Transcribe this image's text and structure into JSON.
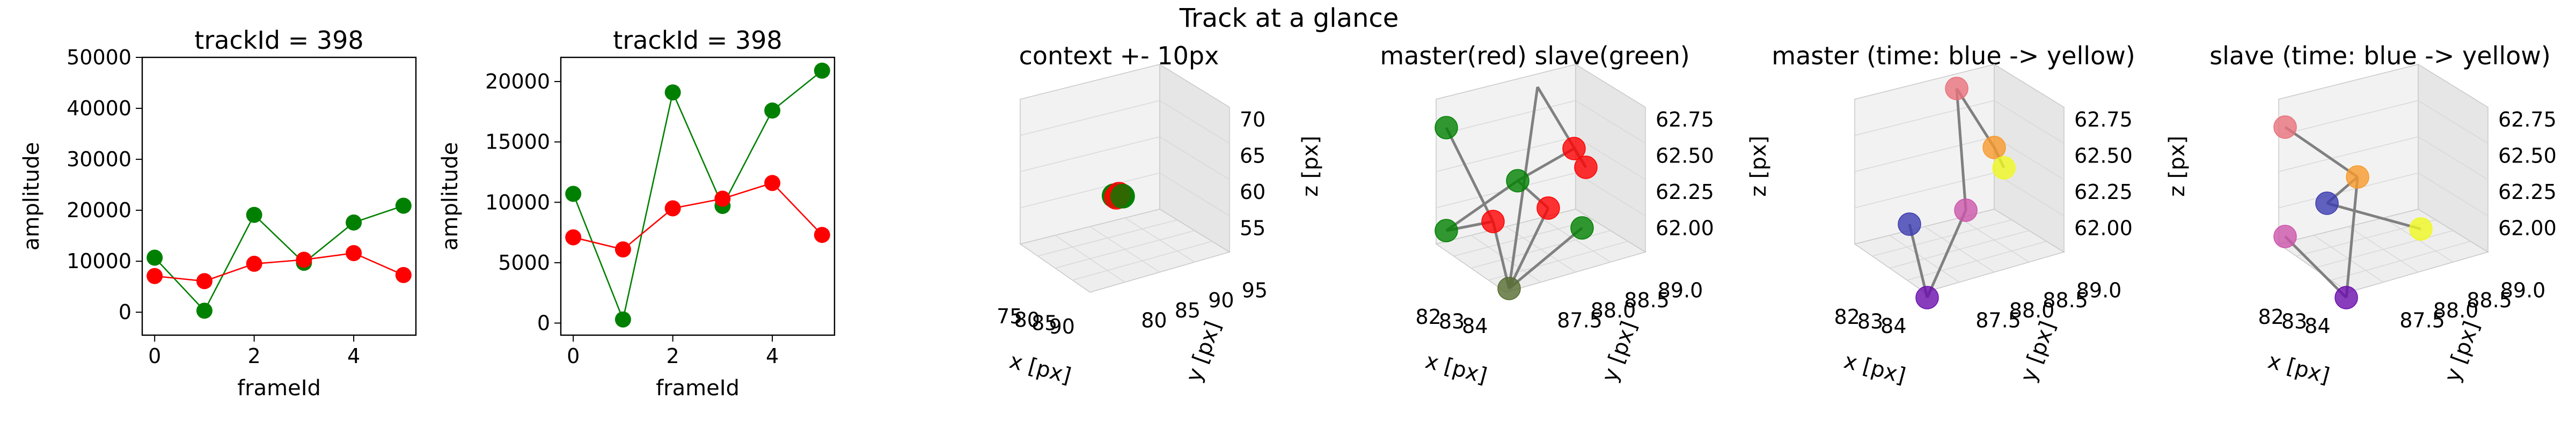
{
  "figure": {
    "suptitle": "Track at a glance"
  },
  "chart_data": [
    {
      "type": "line",
      "title": "trackId = 398",
      "xlabel": "frameId",
      "ylabel": "amplitude",
      "x": [
        0,
        1,
        2,
        3,
        4,
        5
      ],
      "xlim": [
        -0.25,
        5.25
      ],
      "ylim": [
        -4500,
        50000
      ],
      "xticks": [
        "0",
        "2",
        "4"
      ],
      "xtick_values": [
        0,
        2,
        4
      ],
      "yticks": [
        "0",
        "10000",
        "20000",
        "30000",
        "40000",
        "50000"
      ],
      "ytick_values": [
        0,
        10000,
        20000,
        30000,
        40000,
        50000
      ],
      "series": [
        {
          "color": "#008000",
          "values": [
            10700,
            300,
            19100,
            9700,
            17600,
            20900
          ]
        },
        {
          "color": "#ff0000",
          "values": [
            7100,
            6100,
            9500,
            10300,
            11600,
            7300
          ]
        }
      ]
    },
    {
      "type": "line",
      "title": "trackId = 398",
      "xlabel": "frameId",
      "ylabel": "amplitude",
      "x": [
        0,
        1,
        2,
        3,
        4,
        5
      ],
      "xlim": [
        -0.25,
        5.25
      ],
      "ylim": [
        -1000,
        22000
      ],
      "xticks": [
        "0",
        "2",
        "4"
      ],
      "xtick_values": [
        0,
        2,
        4
      ],
      "yticks": [
        "0",
        "5000",
        "10000",
        "15000",
        "20000"
      ],
      "ytick_values": [
        0,
        5000,
        10000,
        15000,
        20000
      ],
      "series": [
        {
          "color": "#008000",
          "values": [
            10700,
            300,
            19100,
            9700,
            17600,
            20900
          ]
        },
        {
          "color": "#ff0000",
          "values": [
            7100,
            6100,
            9500,
            10300,
            11600,
            7300
          ]
        }
      ]
    },
    {
      "type": "scatter",
      "title": "context +- 10px",
      "xlabel": "x [px]",
      "ylabel": "y [px]",
      "zlabel": "z [px]",
      "xticks": [
        "75",
        "80",
        "85",
        "90"
      ],
      "yticks": [
        "80",
        "85",
        "90",
        "95"
      ],
      "zticks": [
        "55",
        "60",
        "65",
        "70"
      ],
      "points": [
        {
          "x": 83,
          "y": 88.2,
          "z": 62.2,
          "color": "#008000"
        },
        {
          "x": 83.5,
          "y": 88.5,
          "z": 62.5,
          "color": "#ff0000"
        },
        {
          "x": 82.5,
          "y": 88.7,
          "z": 62.3,
          "color": "#ff0000"
        },
        {
          "x": 84,
          "y": 88.9,
          "z": 62.1,
          "color": "#008000"
        }
      ]
    },
    {
      "type": "scatter",
      "title": "master(red) slave(green)",
      "xlabel": "x [px]",
      "ylabel": "y [px]",
      "zlabel": "z [px]",
      "xticks": [
        "82",
        "83",
        "84"
      ],
      "yticks": [
        "87.5",
        "88.0",
        "88.5",
        "89.0"
      ],
      "zticks": [
        "62.00",
        "62.25",
        "62.50",
        "62.75"
      ],
      "points": [
        {
          "x": 82,
          "y": 88.0,
          "z": 62.7,
          "color": "#008000"
        },
        {
          "x": 82,
          "y": 88.0,
          "z": 62.0,
          "color": "#008000"
        },
        {
          "x": 83.0,
          "y": 88.2,
          "z": 62.4,
          "color": "#008000"
        },
        {
          "x": 83.3,
          "y": 87.6,
          "z": 61.9,
          "color": "#556b2f"
        },
        {
          "x": 84,
          "y": 88.8,
          "z": 62.1,
          "color": "#008000"
        },
        {
          "x": 82.5,
          "y": 88.6,
          "z": 62.2,
          "color": "#ff0000"
        },
        {
          "x": 83.5,
          "y": 88.8,
          "z": 62.2,
          "color": "#ff0000"
        },
        {
          "x": 84,
          "y": 88.9,
          "z": 62.5,
          "color": "#ff0000"
        },
        {
          "x": 84,
          "y": 88.9,
          "z": 62.8,
          "color": "#ff0000"
        }
      ]
    },
    {
      "type": "scatter",
      "title": "master (time: blue -> yellow)",
      "xlabel": "x [px]",
      "ylabel": "y [px]",
      "zlabel": "z [px]",
      "xticks": [
        "82",
        "83",
        "84"
      ],
      "yticks": [
        "87.5",
        "88.0",
        "88.5",
        "89.0"
      ],
      "zticks": [
        "62.00",
        "62.25",
        "62.50",
        "62.75"
      ],
      "points": [
        {
          "x": 82.0,
          "y": 88.0,
          "z": 62.2,
          "color": "#3b3bb0"
        },
        {
          "x": 83.2,
          "y": 87.6,
          "z": 61.9,
          "color": "#6a0dad"
        },
        {
          "x": 83.5,
          "y": 88.5,
          "z": 62.3,
          "color": "#cc55aa"
        },
        {
          "x": 83.0,
          "y": 89.0,
          "z": 62.8,
          "color": "#e8707a"
        },
        {
          "x": 84.0,
          "y": 88.8,
          "z": 62.5,
          "color": "#f79a2c"
        },
        {
          "x": 84.2,
          "y": 88.9,
          "z": 62.45,
          "color": "#f0f921"
        }
      ]
    },
    {
      "type": "scatter",
      "title": "slave (time: blue -> yellow)",
      "xlabel": "x [px]",
      "ylabel": "y [px]",
      "zlabel": "z [px]",
      "xticks": [
        "82",
        "83",
        "84"
      ],
      "yticks": [
        "87.5",
        "88.0",
        "88.5",
        "89.0"
      ],
      "zticks": [
        "62.00",
        "62.25",
        "62.50",
        "62.75"
      ],
      "points": [
        {
          "x": 82.0,
          "y": 88.0,
          "z": 62.7,
          "color": "#e8707a"
        },
        {
          "x": 82.0,
          "y": 88.0,
          "z": 62.0,
          "color": "#cc55aa"
        },
        {
          "x": 83.0,
          "y": 88.2,
          "z": 62.2,
          "color": "#3b3bb0"
        },
        {
          "x": 83.3,
          "y": 87.6,
          "z": 61.9,
          "color": "#6a0dad"
        },
        {
          "x": 84.0,
          "y": 88.8,
          "z": 62.4,
          "color": "#f79a2c"
        },
        {
          "x": 84.3,
          "y": 88.9,
          "z": 62.0,
          "color": "#f0f921"
        }
      ]
    }
  ]
}
